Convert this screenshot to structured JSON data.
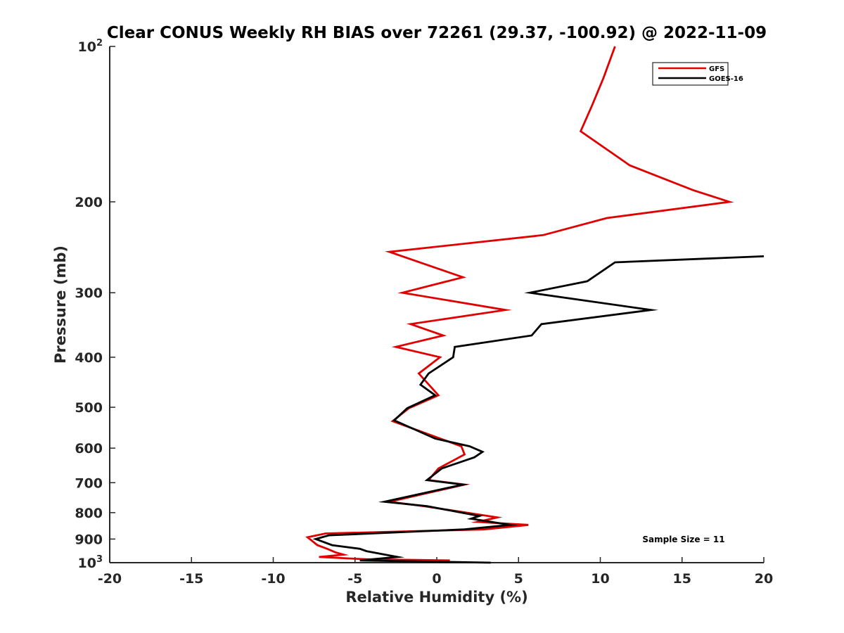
{
  "chart_data": {
    "type": "line",
    "title": "Clear CONUS Weekly RH BIAS over 72261 (29.37, -100.92) @ 2022-11-09",
    "xlabel": "Relative Humidity (%)",
    "ylabel": "Pressure (mb)",
    "xlim": [
      -20,
      20
    ],
    "ylim": [
      100,
      1000
    ],
    "y_scale": "log",
    "y_reversed": true,
    "grid": false,
    "legend_position": "top-right",
    "x_ticks": [
      "-20",
      "-15",
      "-10",
      "-5",
      "0",
      "5",
      "10",
      "15",
      "20"
    ],
    "y_ticks": [
      {
        "value": 100,
        "base": "10",
        "exp": "2"
      },
      {
        "value": 200,
        "base": "200",
        "exp": ""
      },
      {
        "value": 300,
        "base": "300",
        "exp": ""
      },
      {
        "value": 400,
        "base": "400",
        "exp": ""
      },
      {
        "value": 500,
        "base": "500",
        "exp": ""
      },
      {
        "value": 600,
        "base": "600",
        "exp": ""
      },
      {
        "value": 700,
        "base": "700",
        "exp": ""
      },
      {
        "value": 800,
        "base": "800",
        "exp": ""
      },
      {
        "value": 900,
        "base": "900",
        "exp": ""
      },
      {
        "value": 1000,
        "base": "10",
        "exp": "3"
      }
    ],
    "annotation": "Sample Size = 11",
    "series": [
      {
        "name": "GFS",
        "color": "#e00000",
        "points": [
          [
            10.9,
            100
          ],
          [
            10.2,
            115
          ],
          [
            9.5,
            130
          ],
          [
            8.8,
            146
          ],
          [
            11.8,
            170
          ],
          [
            15.7,
            190
          ],
          [
            17.9,
            200
          ],
          [
            10.4,
            215
          ],
          [
            6.5,
            232
          ],
          [
            -2.9,
            250
          ],
          [
            1.6,
            280
          ],
          [
            -2.1,
            300
          ],
          [
            4.2,
            324
          ],
          [
            -1.6,
            345
          ],
          [
            0.4,
            363
          ],
          [
            -2.5,
            382
          ],
          [
            0.2,
            400
          ],
          [
            -1.1,
            430
          ],
          [
            0.1,
            474
          ],
          [
            -1.7,
            502
          ],
          [
            -2.7,
            532
          ],
          [
            1.5,
            595
          ],
          [
            1.7,
            617
          ],
          [
            0.1,
            657
          ],
          [
            -0.5,
            692
          ],
          [
            1.7,
            706
          ],
          [
            -2.9,
            762
          ],
          [
            -0.8,
            777
          ],
          [
            3.7,
            817
          ],
          [
            2.5,
            834
          ],
          [
            5.6,
            845
          ],
          [
            2.9,
            862
          ],
          [
            -6.8,
            878
          ],
          [
            -7.9,
            893
          ],
          [
            -7.3,
            925
          ],
          [
            -6.7,
            940
          ],
          [
            -6.2,
            955
          ],
          [
            -5.7,
            965
          ],
          [
            -7.2,
            975
          ],
          [
            -4.3,
            985
          ],
          [
            0.8,
            990
          ]
        ]
      },
      {
        "name": "GOES-16",
        "color": "#000000",
        "points": [
          [
            20.0,
            255
          ],
          [
            10.9,
            262
          ],
          [
            9.2,
            285
          ],
          [
            5.7,
            300
          ],
          [
            13.1,
            324
          ],
          [
            6.4,
            345
          ],
          [
            5.8,
            363
          ],
          [
            1.1,
            382
          ],
          [
            1.0,
            400
          ],
          [
            -0.5,
            430
          ],
          [
            -1.0,
            452
          ],
          [
            -0.1,
            474
          ],
          [
            -1.8,
            502
          ],
          [
            -2.6,
            530
          ],
          [
            -0.1,
            575
          ],
          [
            2.0,
            595
          ],
          [
            2.8,
            610
          ],
          [
            2.3,
            625
          ],
          [
            0.3,
            657
          ],
          [
            -0.6,
            692
          ],
          [
            1.6,
            706
          ],
          [
            -3.2,
            762
          ],
          [
            -0.6,
            777
          ],
          [
            2.6,
            812
          ],
          [
            2.1,
            822
          ],
          [
            4.5,
            845
          ],
          [
            1.7,
            862
          ],
          [
            -6.6,
            885
          ],
          [
            -7.4,
            900
          ],
          [
            -6.4,
            925
          ],
          [
            -4.7,
            940
          ],
          [
            -4.3,
            950
          ],
          [
            -2.4,
            975
          ],
          [
            -4.7,
            990
          ],
          [
            3.3,
            1000
          ]
        ]
      }
    ]
  }
}
